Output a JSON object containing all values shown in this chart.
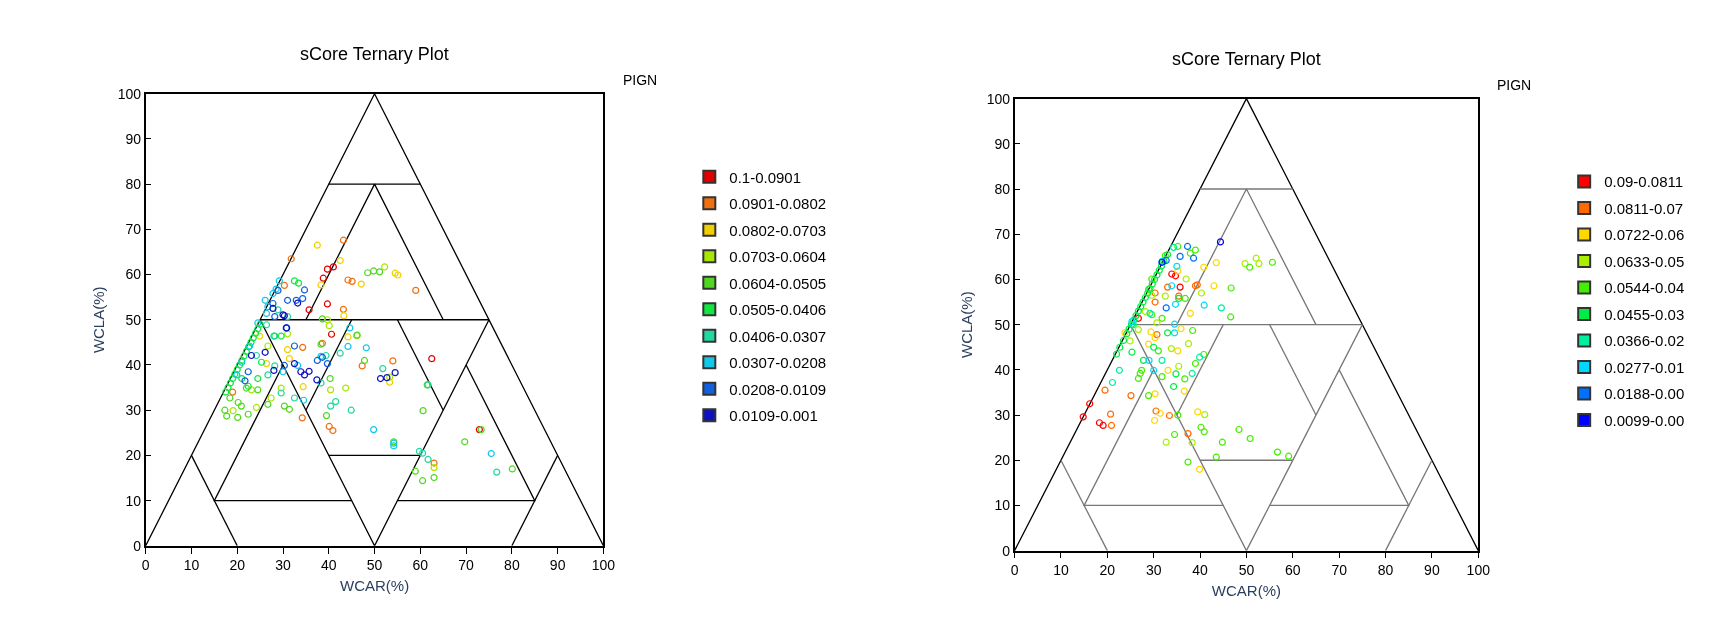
{
  "chart_data": [
    {
      "type": "scatter",
      "title": "sCore Ternary Plot",
      "xlabel": "WCAR(%)",
      "ylabel": "WCLA(%)",
      "legend_title": "PIGN",
      "legend": "right",
      "marker": "circle",
      "xlim": [
        0,
        100
      ],
      "ylim": [
        0,
        100
      ],
      "xticks": [
        0,
        10,
        20,
        30,
        40,
        50,
        60,
        70,
        80,
        90,
        100
      ],
      "yticks": [
        0,
        10,
        20,
        30,
        40,
        50,
        60,
        70,
        80,
        90,
        100
      ],
      "series": [
        {
          "type": "line",
          "marker": "none",
          "color": "#000000",
          "x": [
            0,
            50,
            100
          ],
          "values": [
            0,
            100,
            0
          ]
        },
        {
          "type": "line",
          "marker": "none",
          "color": "#000000",
          "x": [
            40,
            60
          ],
          "values": [
            80,
            80
          ]
        },
        {
          "type": "line",
          "marker": "none",
          "color": "#000000",
          "x": [
            35,
            50,
            65
          ],
          "values": [
            50,
            80,
            50
          ]
        },
        {
          "type": "line",
          "marker": "none",
          "color": "#000000",
          "x": [
            25,
            75
          ],
          "values": [
            50,
            50
          ]
        },
        {
          "type": "line",
          "marker": "none",
          "color": "#000000",
          "x": [
            25,
            50,
            75
          ],
          "values": [
            50,
            0,
            50
          ]
        },
        {
          "type": "line",
          "marker": "none",
          "color": "#000000",
          "x": [
            45,
            35
          ],
          "values": [
            50,
            30
          ]
        },
        {
          "type": "line",
          "marker": "none",
          "color": "#000000",
          "x": [
            55,
            65
          ],
          "values": [
            50,
            30
          ]
        },
        {
          "type": "line",
          "marker": "none",
          "color": "#000000",
          "x": [
            40,
            60
          ],
          "values": [
            20,
            20
          ]
        },
        {
          "type": "line",
          "marker": "none",
          "color": "#000000",
          "x": [
            10,
            20
          ],
          "values": [
            20,
            0
          ]
        },
        {
          "type": "line",
          "marker": "none",
          "color": "#000000",
          "x": [
            30,
            15,
            45
          ],
          "values": [
            40,
            10,
            10
          ]
        },
        {
          "type": "line",
          "marker": "none",
          "color": "#000000",
          "x": [
            90,
            80
          ],
          "values": [
            20,
            0
          ]
        },
        {
          "type": "line",
          "marker": "none",
          "color": "#000000",
          "x": [
            70,
            85,
            55
          ],
          "values": [
            40,
            10,
            10
          ]
        },
        {
          "name": "0.1-0.0901",
          "color": "#e00000",
          "x": [
            39.7,
            41,
            38.8,
            39.7,
            40.6,
            62.5,
            72.9,
            35.7
          ],
          "values": [
            61.2,
            61.7,
            59.2,
            53.5,
            46.8,
            41.4,
            25.7,
            52.2
          ]
        },
        {
          "name": "0.0901-0.0802",
          "color": "#f07010",
          "x": [
            31.8,
            44.2,
            45.1,
            59,
            43.2,
            38.6,
            54,
            47.3,
            34.2,
            40.1,
            40.9,
            63,
            19,
            34.3,
            30.3,
            43.2
          ],
          "values": [
            63.5,
            58.8,
            58.5,
            56.5,
            52.3,
            44.8,
            40.9,
            39.8,
            28.3,
            26.4,
            25.5,
            18.3,
            34,
            43.9,
            57.6,
            67.6
          ]
        },
        {
          "name": "0.0802-0.0703",
          "color": "#f0d000",
          "x": [
            37.5,
            42.5,
            47.1,
            54.5,
            55.1,
            43.3,
            38.3,
            44.2,
            53.3,
            34.4,
            31,
            26.4,
            24.9,
            31.4
          ],
          "values": [
            66.5,
            63.1,
            57.9,
            60.3,
            59.9,
            50.9,
            57.7,
            46.2,
            36.2,
            35.2,
            43.4,
            40.3,
            46.4,
            41.4
          ]
        },
        {
          "name": "0.0703-0.0604",
          "color": "#a8e800",
          "x": [
            52.2,
            39.7,
            40.1,
            46.1,
            26.7,
            31,
            40.4,
            43.7,
            53.3,
            19.1,
            27.4,
            24.2,
            29.6,
            23.1,
            63
          ],
          "values": [
            61.7,
            50,
            48.7,
            46.5,
            44.2,
            46.9,
            34.5,
            34.9,
            37.3,
            29.9,
            32.7,
            30.6,
            34.9,
            34.5,
            17.3
          ]
        },
        {
          "name": "0.0604-0.0505",
          "color": "#50d820",
          "x": [
            48.5,
            49.8,
            51.1,
            38.6,
            46.2,
            38.3,
            47.8,
            40.3,
            17.3,
            17.7,
            20.1,
            22.4,
            20.9,
            18.4,
            20.2,
            24.5,
            26.7,
            30.3,
            31.4,
            60.5,
            58.9,
            63,
            80.1,
            69.7,
            73.3,
            61.5,
            60.6,
            39.5,
            54.2,
            22
          ],
          "values": [
            60.4,
            60.8,
            60.6,
            50.2,
            46.6,
            44.6,
            41,
            37,
            30,
            28.7,
            28.4,
            29.1,
            30.9,
            32.7,
            31.7,
            34.5,
            31.3,
            30.9,
            30.2,
            14.4,
            16.5,
            15.1,
            17,
            23,
            25.7,
            35.6,
            29.9,
            28.8,
            23,
            34.9
          ]
        },
        {
          "name": "0.0505-0.0406",
          "color": "#10e840",
          "x": [
            17.5,
            18,
            18.5,
            19,
            19.5,
            20,
            20.5,
            21,
            21.5,
            22,
            22.5,
            23,
            23.5,
            24,
            24.5,
            25,
            32.5,
            33.4,
            21,
            22.4,
            24.5,
            28.2,
            29.6,
            25.3
          ],
          "values": [
            34,
            35,
            36,
            37,
            38,
            39,
            40,
            41,
            42,
            43,
            44,
            45,
            46,
            47,
            48,
            49,
            58.6,
            58.1,
            37,
            35.3,
            37,
            46.4,
            46.4,
            40.6
          ]
        },
        {
          "name": "0.0406-0.0307",
          "color": "#20d8a0",
          "x": [
            32.5,
            29.6,
            41.5,
            40.4,
            44.9,
            60.5,
            59.8,
            61.7,
            76.7,
            61.7,
            51.8,
            42.5,
            39.4,
            24.2,
            28.2,
            26.7,
            26.4,
            28,
            28.9,
            31,
            38.3
          ],
          "values": [
            32.7,
            33.8,
            31.9,
            30.9,
            30,
            20.5,
            20.9,
            19.1,
            16.3,
            35.6,
            39.2,
            42.6,
            42.1,
            42.1,
            39.8,
            37.8,
            48.9,
            46.4,
            52.2,
            50.7,
            36
          ]
        },
        {
          "name": "0.0307-0.0208",
          "color": "#10c8e8",
          "x": [
            44.6,
            44.2,
            48.2,
            49.8,
            54.2,
            54.2,
            75.5,
            34.5,
            38.3,
            33.2,
            30,
            26.7,
            26.4,
            26.1,
            27.8,
            28.5,
            29.2,
            24.5,
            22.7,
            21,
            19.9
          ],
          "values": [
            48.2,
            44.1,
            43.8,
            25.7,
            22.7,
            22.1,
            20.4,
            32.2,
            41.9,
            39.9,
            38.5,
            52.9,
            51.4,
            54.3,
            55.8,
            56.8,
            58.6,
            49.3,
            44.2,
            40.6,
            37.8
          ]
        },
        {
          "name": "0.0208-0.0109",
          "color": "#1060e0",
          "x": [
            34.7,
            34.3,
            32.9,
            31,
            32.5,
            30.7,
            37.5,
            38.6,
            27.8,
            28.9,
            28.2,
            30.3,
            22.4,
            21.7,
            39.7
          ],
          "values": [
            56.6,
            54.7,
            54.3,
            54.3,
            44.2,
            48.2,
            41,
            41.7,
            53.6,
            56.5,
            50.7,
            39.9,
            38.5,
            36.5,
            40.3
          ]
        },
        {
          "name": "0.0109-0.001",
          "color": "#1010c0",
          "x": [
            30.8,
            30.3,
            32.5,
            34.7,
            33.9,
            35.7,
            37.4,
            51.3,
            54.5,
            52.7,
            28,
            26.1,
            23.1,
            30,
            27.8,
            33.2
          ],
          "values": [
            48.2,
            50.9,
            40.3,
            37.8,
            38.5,
            38.6,
            36.7,
            37,
            38.3,
            37.2,
            38.8,
            42.8,
            42.1,
            51.1,
            52.5,
            53.7
          ]
        }
      ]
    },
    {
      "type": "scatter",
      "title": "sCore Ternary Plot",
      "xlabel": "WCAR(%)",
      "ylabel": "WCLA(%)",
      "legend_title": "PIGN",
      "legend": "right",
      "marker": "circle",
      "xlim": [
        0,
        100
      ],
      "ylim": [
        0,
        100
      ],
      "xticks": [
        0,
        10,
        20,
        30,
        40,
        50,
        60,
        70,
        80,
        90,
        100
      ],
      "yticks": [
        0,
        10,
        20,
        30,
        40,
        50,
        60,
        70,
        80,
        90,
        100
      ],
      "series": [
        {
          "type": "line",
          "marker": "none",
          "color": "#000000",
          "x": [
            0,
            50,
            100
          ],
          "values": [
            0,
            100,
            0
          ]
        },
        {
          "type": "line",
          "marker": "none",
          "color": "#777777",
          "x": [
            40,
            60
          ],
          "values": [
            80,
            80
          ]
        },
        {
          "type": "line",
          "marker": "none",
          "color": "#777777",
          "x": [
            35,
            50,
            65
          ],
          "values": [
            50,
            80,
            50
          ]
        },
        {
          "type": "line",
          "marker": "none",
          "color": "#777777",
          "x": [
            25,
            75
          ],
          "values": [
            50,
            50
          ]
        },
        {
          "type": "line",
          "marker": "none",
          "color": "#777777",
          "x": [
            25,
            50,
            75
          ],
          "values": [
            50,
            0,
            50
          ]
        },
        {
          "type": "line",
          "marker": "none",
          "color": "#777777",
          "x": [
            45,
            35
          ],
          "values": [
            50,
            30
          ]
        },
        {
          "type": "line",
          "marker": "none",
          "color": "#777777",
          "x": [
            55,
            65
          ],
          "values": [
            50,
            30
          ]
        },
        {
          "type": "line",
          "marker": "none",
          "color": "#777777",
          "x": [
            40,
            60
          ],
          "values": [
            20,
            20
          ]
        },
        {
          "type": "line",
          "marker": "none",
          "color": "#777777",
          "x": [
            10,
            20
          ],
          "values": [
            20,
            0
          ]
        },
        {
          "type": "line",
          "marker": "none",
          "color": "#777777",
          "x": [
            30,
            15,
            45
          ],
          "values": [
            40,
            10,
            10
          ]
        },
        {
          "type": "line",
          "marker": "none",
          "color": "#777777",
          "x": [
            90,
            80
          ],
          "values": [
            20,
            0
          ]
        },
        {
          "type": "line",
          "marker": "none",
          "color": "#777777",
          "x": [
            70,
            85,
            55
          ],
          "values": [
            40,
            10,
            10
          ]
        },
        {
          "name": "0.09-0.0811",
          "color": "#ff0000",
          "x": [
            16.2,
            14.8,
            18.3,
            19.1,
            33.9,
            35.7,
            34.7,
            26.7
          ],
          "values": [
            32.5,
            29.6,
            28.3,
            27.7,
            61.2,
            58.3,
            60.8,
            51.4
          ]
        },
        {
          "name": "0.0811-0.07",
          "color": "#ff6a00",
          "x": [
            19.5,
            25.1,
            20.7,
            20.9,
            30.5,
            33.4,
            37.4,
            39.4,
            35.4,
            30.3,
            30.3,
            30.7,
            39,
            33
          ],
          "values": [
            35.5,
            34.3,
            30.2,
            27.7,
            30.9,
            29.9,
            25.9,
            58.8,
            56.3,
            57,
            55,
            47.8,
            58.6,
            58.3
          ]
        },
        {
          "name": "0.0722-0.06",
          "color": "#ffd800",
          "x": [
            43.5,
            40.8,
            43,
            37.9,
            35.9,
            35.2,
            33.1,
            36.6,
            30.3,
            30.2,
            31.4,
            39.5,
            39.9,
            28.9,
            29.4,
            23.8,
            35.2,
            30.3
          ],
          "values": [
            63.7,
            62.7,
            58.6,
            52.5,
            49.1,
            44.2,
            39.9,
            35.3,
            34.7,
            28.8,
            30.4,
            30.7,
            18,
            45.7,
            48.4,
            48.2,
            61.9,
            47.1
          ]
        },
        {
          "name": "0.0633-0.05",
          "color": "#aaee00",
          "x": [
            49.7,
            52.1,
            52.7,
            37,
            40.3,
            41,
            38.3,
            32.7,
            30.7,
            37.5,
            35.4,
            33.8,
            24.9,
            26.7,
            28.2,
            32.5,
            29.6
          ],
          "values": [
            63.5,
            64.7,
            63.5,
            60.1,
            57,
            30.1,
            23.9,
            24,
            50.4,
            45.8,
            40.8,
            44.7,
            46.4,
            48.9,
            52.9,
            56.3,
            56.5
          ]
        },
        {
          "name": "0.0544-0.04",
          "color": "#44ee00",
          "x": [
            50.7,
            55.6,
            46.7,
            46.6,
            35.2,
            34.5,
            40.2,
            40.9,
            44.8,
            48.4,
            50.8,
            56.7,
            59.1,
            43.5,
            37.4,
            28.9,
            26.7,
            27.1,
            31.8,
            36.7,
            39,
            40.8,
            37.9,
            39,
            35.2,
            32.5,
            29.6,
            28.9,
            29.6,
            31.8,
            36.8,
            38.4,
            31,
            27.4
          ],
          "values": [
            62.7,
            63.8,
            58.1,
            51.7,
            30,
            25.7,
            27.3,
            26.3,
            24,
            26.8,
            24.8,
            21.8,
            20.9,
            20.7,
            19.6,
            34.3,
            38.1,
            39.2,
            38.5,
            38,
            41.4,
            43.4,
            65.8,
            66.5,
            67.3,
            65.3,
            60.1,
            57.8,
            52.2,
            51.4,
            55.8,
            48.7,
            44.2,
            39.9
          ]
        },
        {
          "name": "0.0455-0.03",
          "color": "#00ee44",
          "x": [
            22,
            22.7,
            23.5,
            24.2,
            24.7,
            25.2,
            25.7,
            26.2,
            26.7,
            27.2,
            27.7,
            28.2,
            28.7,
            29.2,
            29.7,
            30.2,
            30.7,
            31.2,
            31.7,
            32.2,
            33,
            25.3,
            27.8,
            34.3,
            34.8,
            30,
            33,
            35.4
          ],
          "values": [
            43.5,
            45,
            46.5,
            48,
            49,
            50,
            51,
            52,
            53,
            54,
            55,
            56,
            57,
            58,
            59,
            60,
            61,
            62,
            63,
            64,
            65.5,
            43.9,
            42.1,
            36.3,
            39.1,
            45,
            48.2,
            55.8
          ]
        },
        {
          "name": "0.0366-0.02",
          "color": "#00eea0",
          "x": [
            44.6,
            22.6,
            21.1,
            38.3,
            34.3,
            25.6,
            29.2,
            31.8,
            39.9
          ],
          "values": [
            53.7,
            39.9,
            37.2,
            39.2,
            67.1,
            50,
            52.5,
            42.1,
            42.8
          ]
        },
        {
          "name": "0.0277-0.01",
          "color": "#00d8ff",
          "x": [
            40.9,
            34.7,
            34.5,
            34.5,
            30,
            29,
            31.8,
            35,
            25.3,
            33.9
          ],
          "values": [
            54.3,
            54.5,
            50.1,
            48.2,
            39.9,
            42.1,
            64,
            62.9,
            50.7,
            58.6
          ]
        },
        {
          "name": "0.0188-0.00",
          "color": "#0070ff",
          "x": [
            37.3,
            38.6,
            35.7,
            32.7,
            32.7
          ],
          "values": [
            67.3,
            64.7,
            65.1,
            64.2,
            53.7
          ]
        },
        {
          "name": "0.0099-0.00",
          "color": "#0000ff",
          "x": [
            44.4,
            31.8
          ],
          "values": [
            68.3,
            63.8
          ]
        }
      ]
    }
  ]
}
